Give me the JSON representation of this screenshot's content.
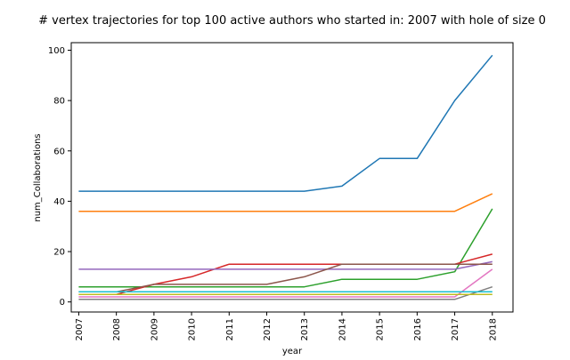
{
  "chart_data": {
    "type": "line",
    "title": "# vertex trajectories for top 100 active authors who started in: 2007 with hole of size 0",
    "xlabel": "year",
    "ylabel": "num_Collaborations",
    "x": [
      "2007",
      "2008",
      "2009",
      "2010",
      "2011",
      "2012",
      "2013",
      "2014",
      "2015",
      "2016",
      "2017",
      "2018"
    ],
    "xlim": [
      2006.8,
      2018.55
    ],
    "ylim": [
      -4,
      103
    ],
    "yticks": [
      0,
      20,
      40,
      60,
      80,
      100
    ],
    "grid": false,
    "legend": "none",
    "series": [
      {
        "color": "#1f77b4",
        "values": [
          44,
          44,
          44,
          44,
          44,
          44,
          44,
          46,
          57,
          57,
          80,
          98
        ]
      },
      {
        "color": "#ff7f0e",
        "values": [
          36,
          36,
          36,
          36,
          36,
          36,
          36,
          36,
          36,
          36,
          36,
          43
        ]
      },
      {
        "color": "#2ca02c",
        "values": [
          6,
          6,
          6,
          6,
          6,
          6,
          6,
          9,
          9,
          9,
          12,
          37
        ]
      },
      {
        "color": "#d62728",
        "values": [
          3,
          3,
          7,
          10,
          15,
          15,
          15,
          15,
          15,
          15,
          15,
          19
        ]
      },
      {
        "color": "#9467bd",
        "values": [
          13,
          13,
          13,
          13,
          13,
          13,
          13,
          13,
          13,
          13,
          13,
          16
        ]
      },
      {
        "color": "#8c564b",
        "values": [
          4,
          4,
          7,
          7,
          7,
          7,
          10,
          15,
          15,
          15,
          15,
          15
        ]
      },
      {
        "color": "#e377c2",
        "values": [
          2,
          2,
          2,
          2,
          2,
          2,
          2,
          2,
          2,
          2,
          2,
          13
        ]
      },
      {
        "color": "#7f7f7f",
        "values": [
          1,
          1,
          1,
          1,
          1,
          1,
          1,
          1,
          1,
          1,
          1,
          6
        ]
      },
      {
        "color": "#bcbd22",
        "values": [
          3,
          3,
          3,
          3,
          3,
          3,
          3,
          3,
          3,
          3,
          3,
          3
        ]
      },
      {
        "color": "#17becf",
        "values": [
          4,
          4,
          4,
          4,
          4,
          4,
          4,
          4,
          4,
          4,
          4,
          4
        ]
      }
    ]
  }
}
